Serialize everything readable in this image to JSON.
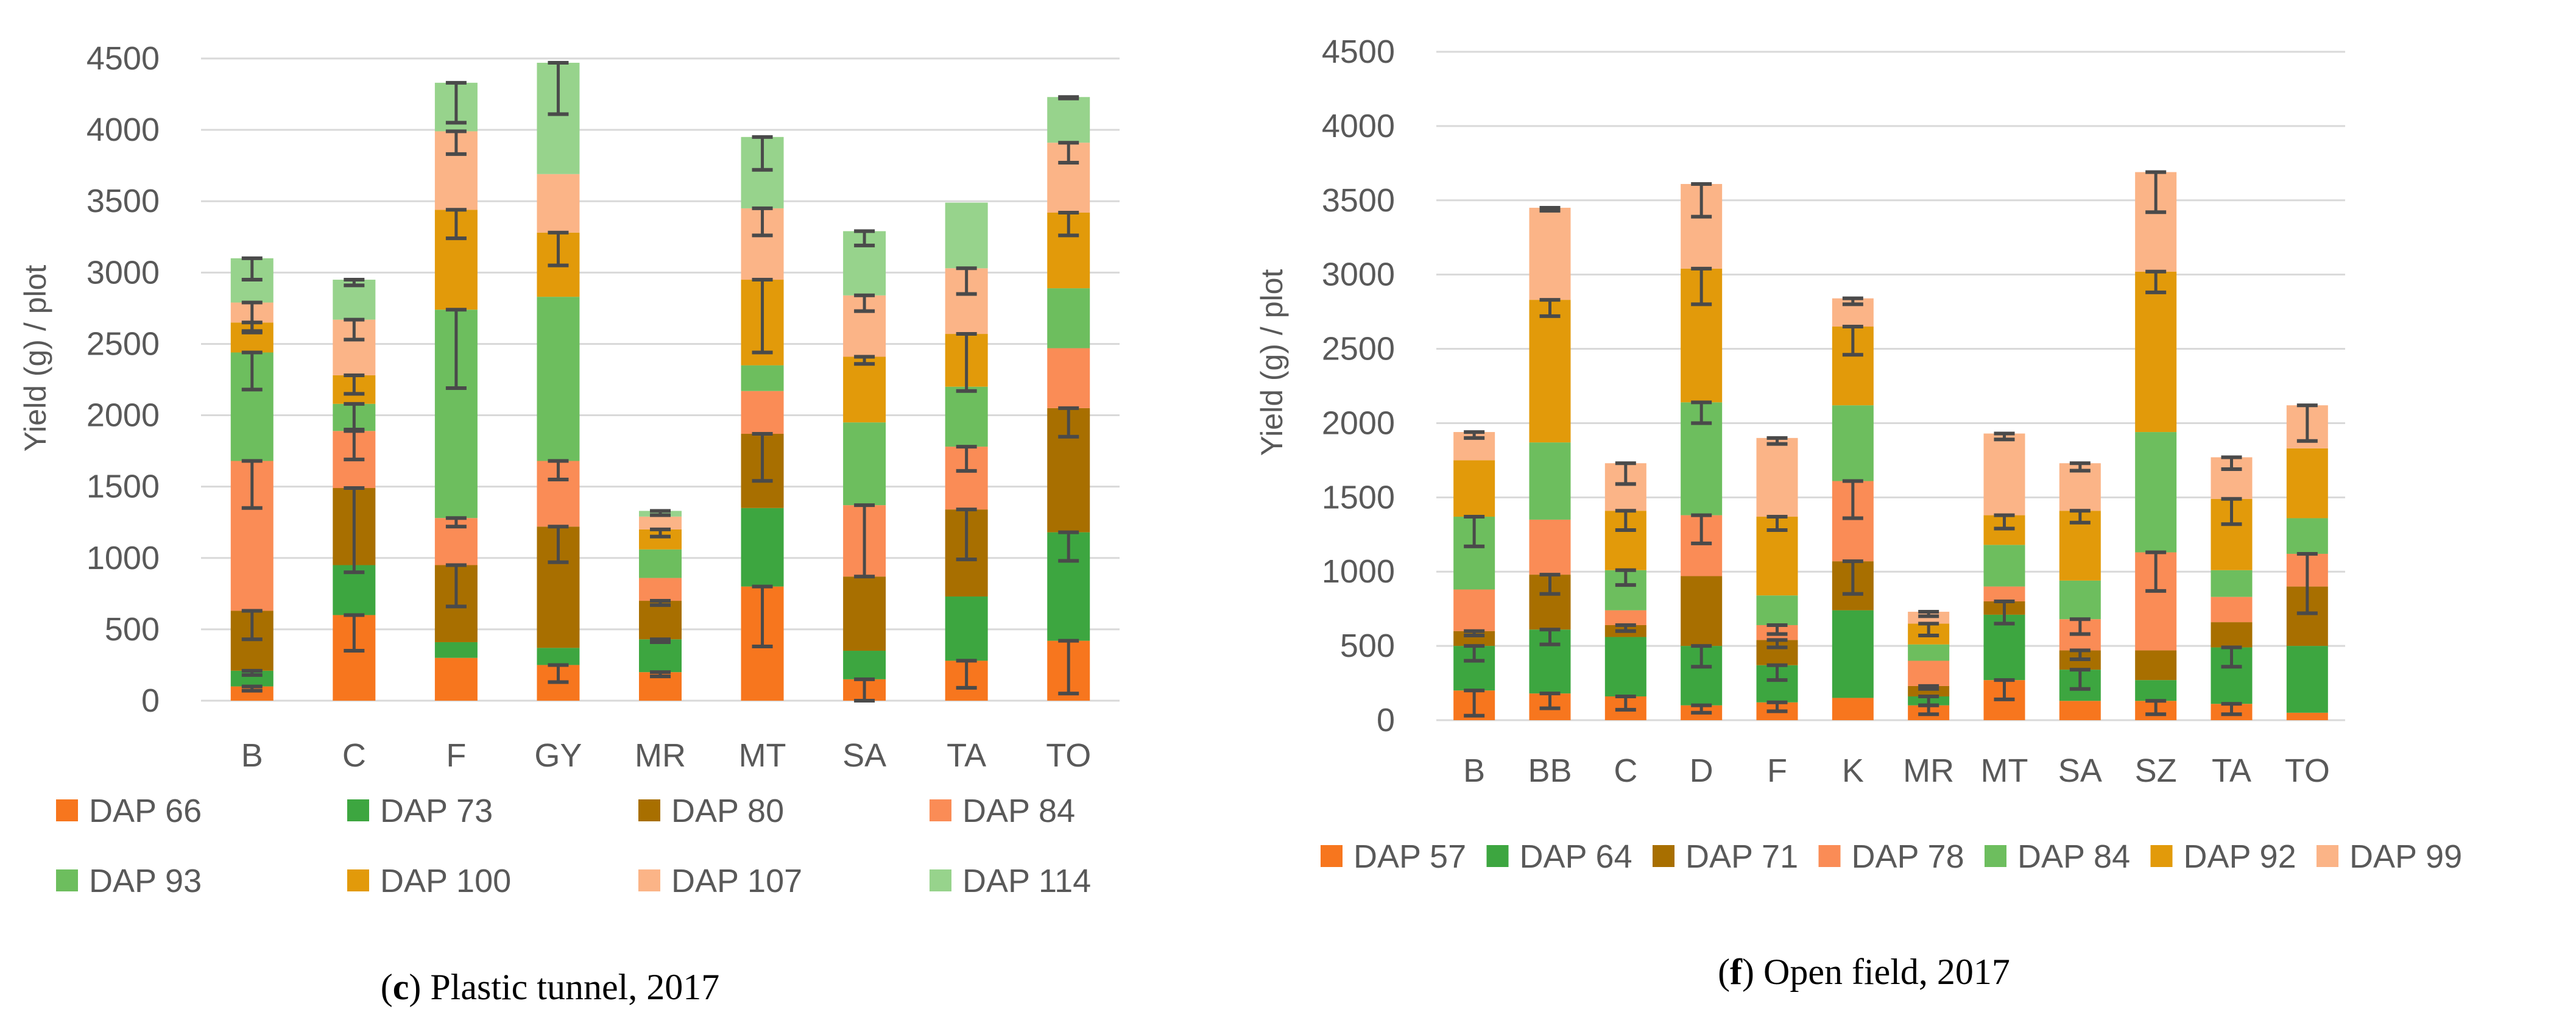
{
  "colors": {
    "gridline": "#d9d9d9",
    "tick_text": "#595959",
    "error_bar": "#4a4a4a"
  },
  "chart_data": [
    {
      "type": "bar",
      "stacked": true,
      "title": "",
      "caption": {
        "letter": "c",
        "text": "Plastic tunnel, 2017"
      },
      "xlabel": "",
      "ylabel": "Yield (g) / plot",
      "ylim": [
        0,
        4500
      ],
      "yticks": [
        0,
        500,
        1000,
        1500,
        2000,
        2500,
        3000,
        3500,
        4000,
        4500
      ],
      "grid": true,
      "legend_position": "bottom",
      "categories": [
        "B",
        "C",
        "F",
        "GY",
        "MR",
        "MT",
        "SA",
        "TA",
        "TO"
      ],
      "series": [
        {
          "name": "DAP 66",
          "color": "#F7761E",
          "values": [
            100,
            600,
            300,
            250,
            200,
            800,
            150,
            280,
            420
          ],
          "errors": [
            30,
            250,
            0,
            120,
            30,
            420,
            150,
            190,
            370
          ]
        },
        {
          "name": "DAP 73",
          "color": "#3DA640",
          "values": [
            110,
            350,
            110,
            120,
            230,
            550,
            200,
            450,
            760
          ],
          "errors": [
            30,
            0,
            0,
            0,
            20,
            0,
            0,
            0,
            200
          ]
        },
        {
          "name": "DAP 80",
          "color": "#A86F00",
          "values": [
            420,
            540,
            540,
            850,
            270,
            520,
            520,
            610,
            870
          ],
          "errors": [
            200,
            590,
            290,
            250,
            30,
            330,
            0,
            350,
            200
          ]
        },
        {
          "name": "DAP 84",
          "color": "#FA8C56",
          "values": [
            1050,
            400,
            330,
            460,
            160,
            300,
            500,
            440,
            420
          ],
          "errors": [
            330,
            200,
            60,
            130,
            0,
            0,
            500,
            170,
            0
          ]
        },
        {
          "name": "DAP 93",
          "color": "#6DBE5E",
          "values": [
            760,
            190,
            1460,
            1150,
            200,
            180,
            580,
            420,
            420
          ],
          "errors": [
            260,
            180,
            550,
            0,
            0,
            0,
            0,
            0,
            0
          ]
        },
        {
          "name": "DAP 100",
          "color": "#E29A0A",
          "values": [
            210,
            200,
            700,
            450,
            140,
            600,
            460,
            370,
            530
          ],
          "errors": [
            60,
            130,
            200,
            230,
            50,
            510,
            50,
            400,
            160
          ]
        },
        {
          "name": "DAP 107",
          "color": "#FBB487",
          "values": [
            140,
            390,
            550,
            410,
            90,
            500,
            430,
            460,
            490
          ],
          "errors": [
            210,
            140,
            160,
            0,
            0,
            190,
            110,
            180,
            140
          ]
        },
        {
          "name": "DAP 114",
          "color": "#97D38C",
          "values": [
            310,
            280,
            340,
            780,
            40,
            500,
            450,
            460,
            320
          ],
          "errors": [
            150,
            40,
            280,
            360,
            30,
            230,
            100,
            0,
            10
          ]
        }
      ]
    },
    {
      "type": "bar",
      "stacked": true,
      "title": "",
      "caption": {
        "letter": "f",
        "text": "Open field, 2017"
      },
      "xlabel": "",
      "ylabel": "Yield (g) / plot",
      "ylim": [
        0,
        4500
      ],
      "yticks": [
        0,
        500,
        1000,
        1500,
        2000,
        2500,
        3000,
        3500,
        4000,
        4500
      ],
      "grid": true,
      "legend_position": "bottom",
      "categories": [
        "B",
        "BB",
        "C",
        "D",
        "F",
        "K",
        "MR",
        "MT",
        "SA",
        "SZ",
        "TA",
        "TO"
      ],
      "series": [
        {
          "name": "DAP 57",
          "color": "#F7761E",
          "values": [
            200,
            180,
            160,
            100,
            120,
            150,
            100,
            270,
            130,
            130,
            110,
            50
          ],
          "errors": [
            170,
            100,
            90,
            50,
            60,
            0,
            60,
            130,
            0,
            90,
            70,
            0
          ]
        },
        {
          "name": "DAP 64",
          "color": "#3DA640",
          "values": [
            300,
            430,
            400,
            400,
            250,
            590,
            60,
            440,
            210,
            140,
            380,
            450
          ],
          "errors": [
            100,
            100,
            0,
            140,
            100,
            0,
            60,
            0,
            130,
            0,
            130,
            0
          ]
        },
        {
          "name": "DAP 71",
          "color": "#A86F00",
          "values": [
            100,
            370,
            80,
            470,
            170,
            330,
            70,
            90,
            130,
            200,
            170,
            400
          ],
          "errors": [
            30,
            130,
            40,
            0,
            50,
            220,
            20,
            150,
            60,
            0,
            0,
            0
          ]
        },
        {
          "name": "DAP 78",
          "color": "#FA8C56",
          "values": [
            280,
            370,
            100,
            410,
            100,
            540,
            170,
            100,
            210,
            660,
            170,
            220
          ],
          "errors": [
            0,
            0,
            0,
            190,
            60,
            250,
            0,
            0,
            100,
            260,
            0,
            400
          ]
        },
        {
          "name": "DAP 84",
          "color": "#6DBE5E",
          "values": [
            490,
            520,
            270,
            760,
            200,
            510,
            110,
            280,
            260,
            810,
            180,
            240
          ],
          "errors": [
            200,
            0,
            100,
            140,
            0,
            0,
            0,
            0,
            0,
            0,
            0,
            0
          ]
        },
        {
          "name": "DAP 92",
          "color": "#E29A0A",
          "values": [
            380,
            960,
            400,
            900,
            530,
            530,
            140,
            200,
            470,
            1080,
            480,
            470
          ],
          "errors": [
            0,
            110,
            130,
            240,
            90,
            190,
            80,
            90,
            80,
            140,
            170,
            0
          ]
        },
        {
          "name": "DAP 99",
          "color": "#FBB487",
          "values": [
            190,
            620,
            320,
            570,
            530,
            190,
            80,
            550,
            320,
            670,
            280,
            290
          ],
          "errors": [
            40,
            20,
            140,
            220,
            40,
            40,
            30,
            40,
            50,
            270,
            80,
            240
          ]
        }
      ]
    }
  ]
}
